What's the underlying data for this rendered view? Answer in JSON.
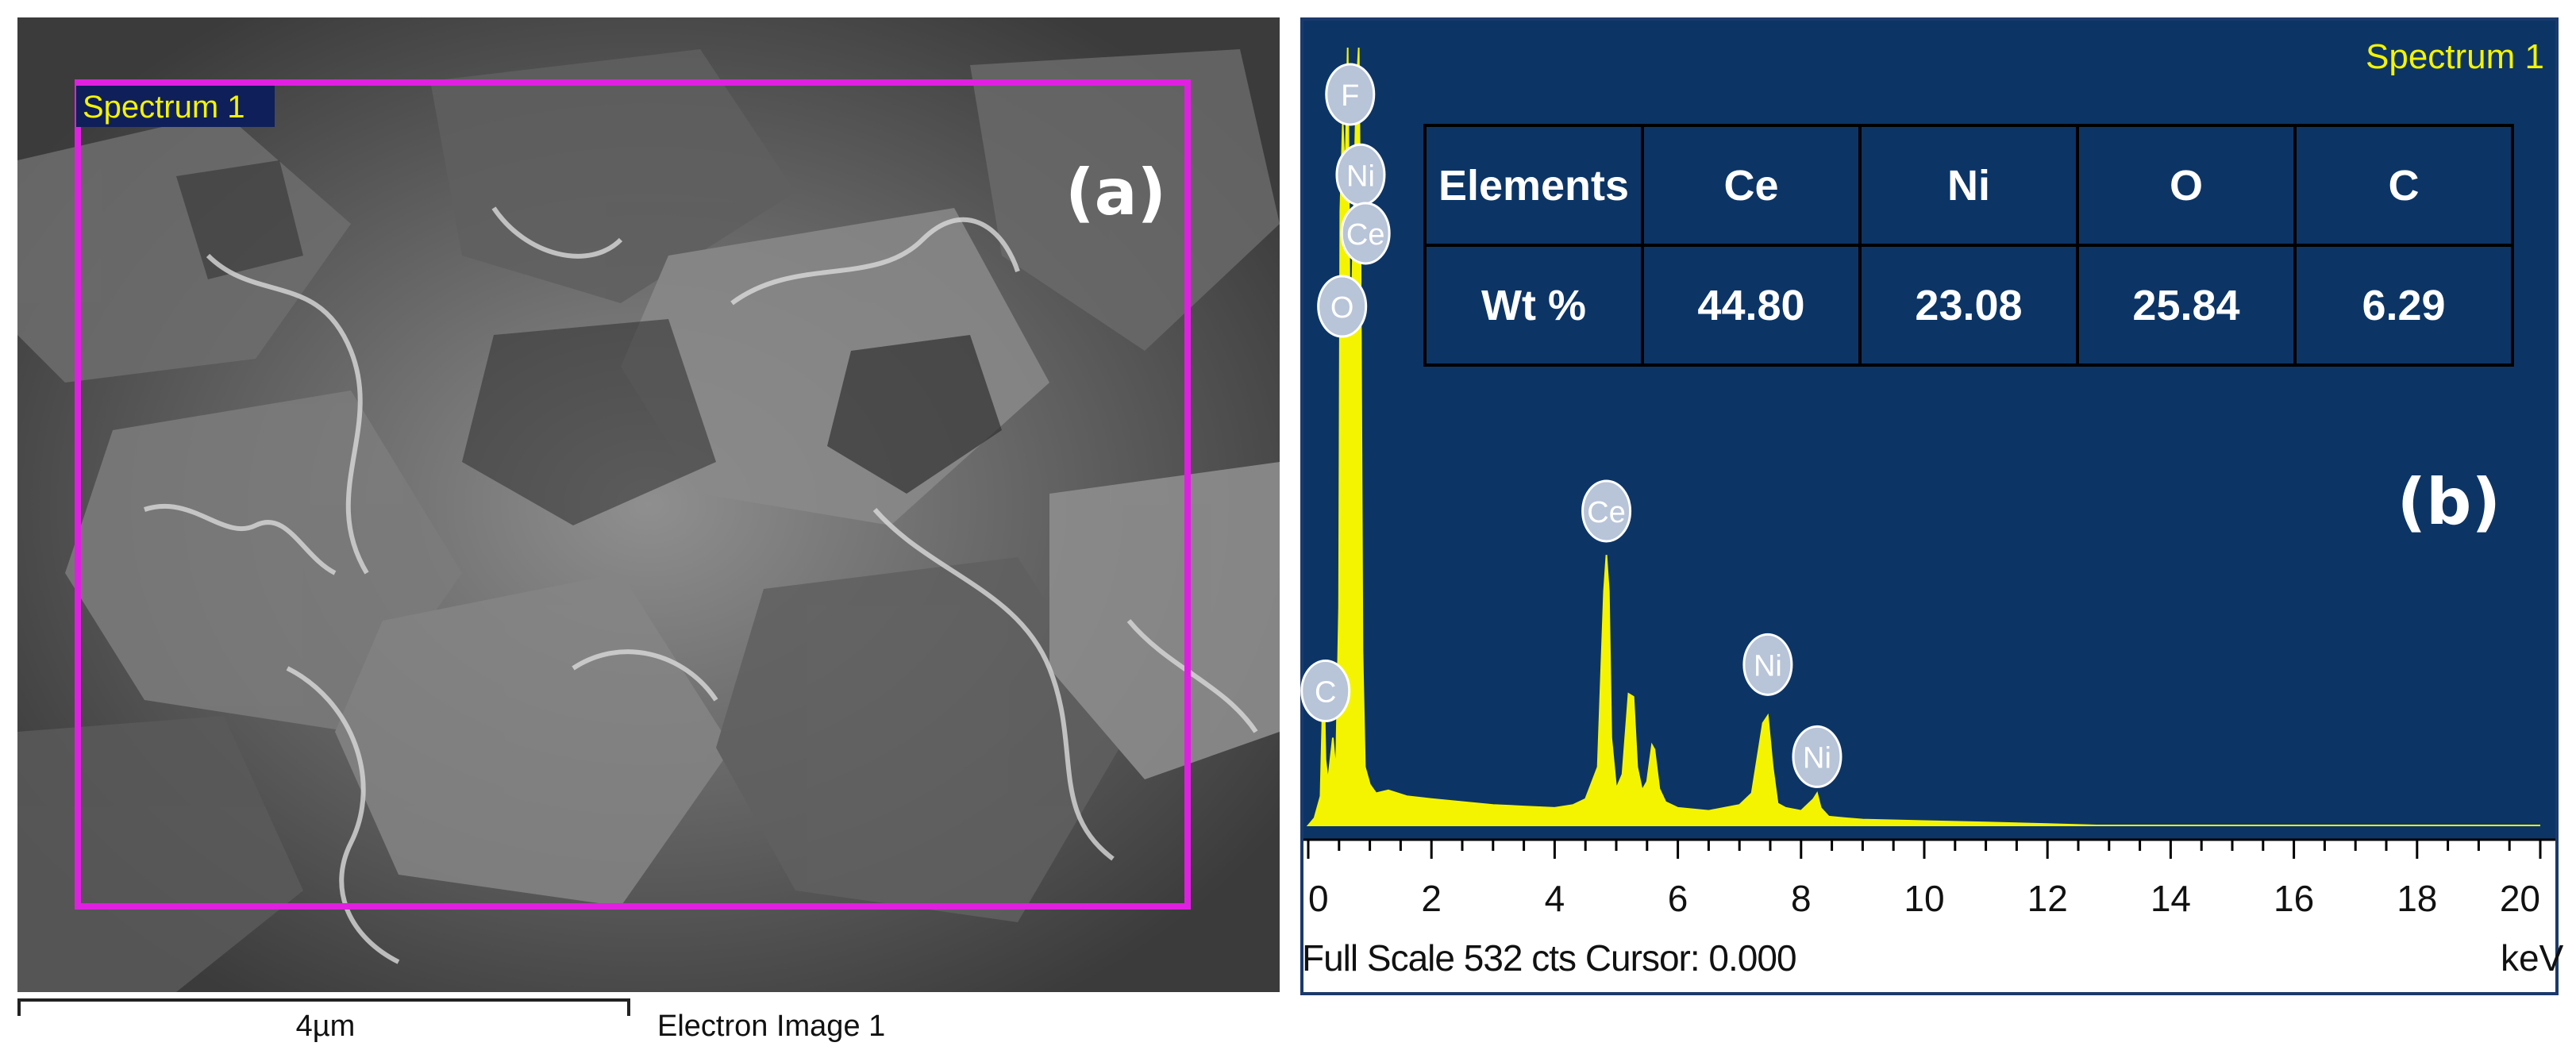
{
  "panel_a": {
    "label": "(a)",
    "roi_label": "Spectrum 1",
    "scale_bar": "4µm",
    "image_title": "Electron Image 1"
  },
  "panel_b": {
    "label": "(b)",
    "spectrum_title": "Spectrum 1",
    "footer": "Full Scale 532 cts Cursor: 0.000",
    "unit": "keV"
  },
  "composition_table": {
    "header": [
      "Elements",
      "Ce",
      "Ni",
      "O",
      "C"
    ],
    "row": [
      "Wt %",
      "44.80",
      "23.08",
      "25.84",
      "6.29"
    ]
  },
  "colors": {
    "plot_bg": "#0c3566",
    "spectrum": "#f4f400",
    "roi_box": "#e020e0",
    "peak_label": "#b8c4d8",
    "title": "#f4f400"
  },
  "chart_data": {
    "type": "area",
    "xlim": [
      0,
      20
    ],
    "ylim": [
      0,
      532
    ],
    "xticks": [
      0,
      2,
      4,
      6,
      8,
      10,
      12,
      14,
      16,
      18,
      20
    ],
    "xlabel": "keV",
    "grid": false,
    "series": [
      {
        "x": [
          0.0,
          0.1,
          0.2,
          0.25,
          0.28,
          0.32,
          0.4,
          0.45,
          0.5,
          0.52,
          0.56,
          0.6,
          0.64,
          0.68,
          0.72,
          0.78,
          0.82,
          0.85,
          0.88,
          0.92,
          1.0,
          1.1,
          1.3,
          1.6,
          2.0,
          2.5,
          3.0,
          3.5,
          4.0,
          4.3,
          4.5,
          4.7,
          4.8,
          4.84,
          4.88,
          4.92,
          5.0,
          5.1,
          5.2,
          5.28,
          5.34,
          5.42,
          5.5,
          5.58,
          5.62,
          5.7,
          5.8,
          6.0,
          6.5,
          7.0,
          7.2,
          7.38,
          7.46,
          7.54,
          7.62,
          7.75,
          8.0,
          8.2,
          8.26,
          8.32,
          8.45,
          8.7,
          9.0,
          10.0,
          11.0,
          12.0,
          12.8,
          13.0,
          14.0,
          16.0,
          18.0,
          20.0
        ],
        "y": [
          0,
          5,
          20,
          110,
          45,
          30,
          60,
          35,
          150,
          420,
          480,
          440,
          532,
          300,
          380,
          500,
          532,
          380,
          120,
          40,
          28,
          22,
          24,
          20,
          18,
          16,
          14,
          13,
          12,
          14,
          18,
          40,
          160,
          185,
          160,
          60,
          25,
          35,
          90,
          88,
          40,
          24,
          30,
          55,
          52,
          25,
          16,
          12,
          10,
          14,
          22,
          70,
          75,
          40,
          15,
          12,
          10,
          18,
          22,
          12,
          6,
          5,
          4,
          3,
          2,
          1,
          0,
          0,
          0,
          0,
          0,
          0
        ]
      }
    ],
    "peak_labels": [
      {
        "element": "F",
        "x": 0.68,
        "y": 500
      },
      {
        "element": "Ni",
        "x": 0.85,
        "y": 445
      },
      {
        "element": "Ce",
        "x": 0.93,
        "y": 405
      },
      {
        "element": "O",
        "x": 0.55,
        "y": 355
      },
      {
        "element": "Ce",
        "x": 4.84,
        "y": 215
      },
      {
        "element": "C",
        "x": 0.28,
        "y": 92
      },
      {
        "element": "Ni",
        "x": 7.46,
        "y": 110
      },
      {
        "element": "Ni",
        "x": 8.26,
        "y": 47
      }
    ]
  }
}
